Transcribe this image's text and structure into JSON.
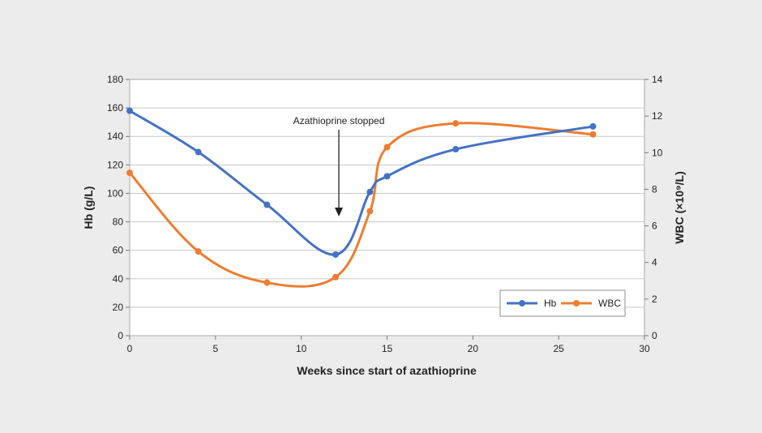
{
  "chart_data": {
    "type": "line",
    "title": "",
    "xlabel": "Weeks since start of azathioprine",
    "ylabel_left": "Hb (g/L)",
    "ylabel_right": "WBC (×10⁹/L)",
    "xlim": [
      0,
      30
    ],
    "ylim_left": [
      0,
      180
    ],
    "ylim_right": [
      0,
      14
    ],
    "xticks": [
      "0",
      "5",
      "10",
      "15",
      "20",
      "25",
      "30"
    ],
    "yticks_left": [
      "0",
      "20",
      "40",
      "60",
      "80",
      "100",
      "120",
      "140",
      "160",
      "180"
    ],
    "yticks_right": [
      "0",
      "2",
      "4",
      "6",
      "8",
      "10",
      "12",
      "14"
    ],
    "grid": "horizontal",
    "legend_position": "bottom-right",
    "annotation": {
      "text": "Azathioprine stopped",
      "x": 12
    },
    "series": [
      {
        "name": "Hb",
        "axis": "left",
        "color": "#4472c4",
        "x": [
          0,
          4,
          8,
          12,
          14,
          15,
          19,
          27
        ],
        "y": [
          158,
          129,
          92,
          57,
          101,
          112,
          131,
          147
        ]
      },
      {
        "name": "WBC",
        "axis": "right",
        "color": "#ed7d31",
        "x": [
          0,
          4,
          8,
          12,
          14,
          15,
          19,
          27
        ],
        "y": [
          8.9,
          4.6,
          2.9,
          3.2,
          6.8,
          10.3,
          11.6,
          11.0
        ]
      }
    ]
  }
}
